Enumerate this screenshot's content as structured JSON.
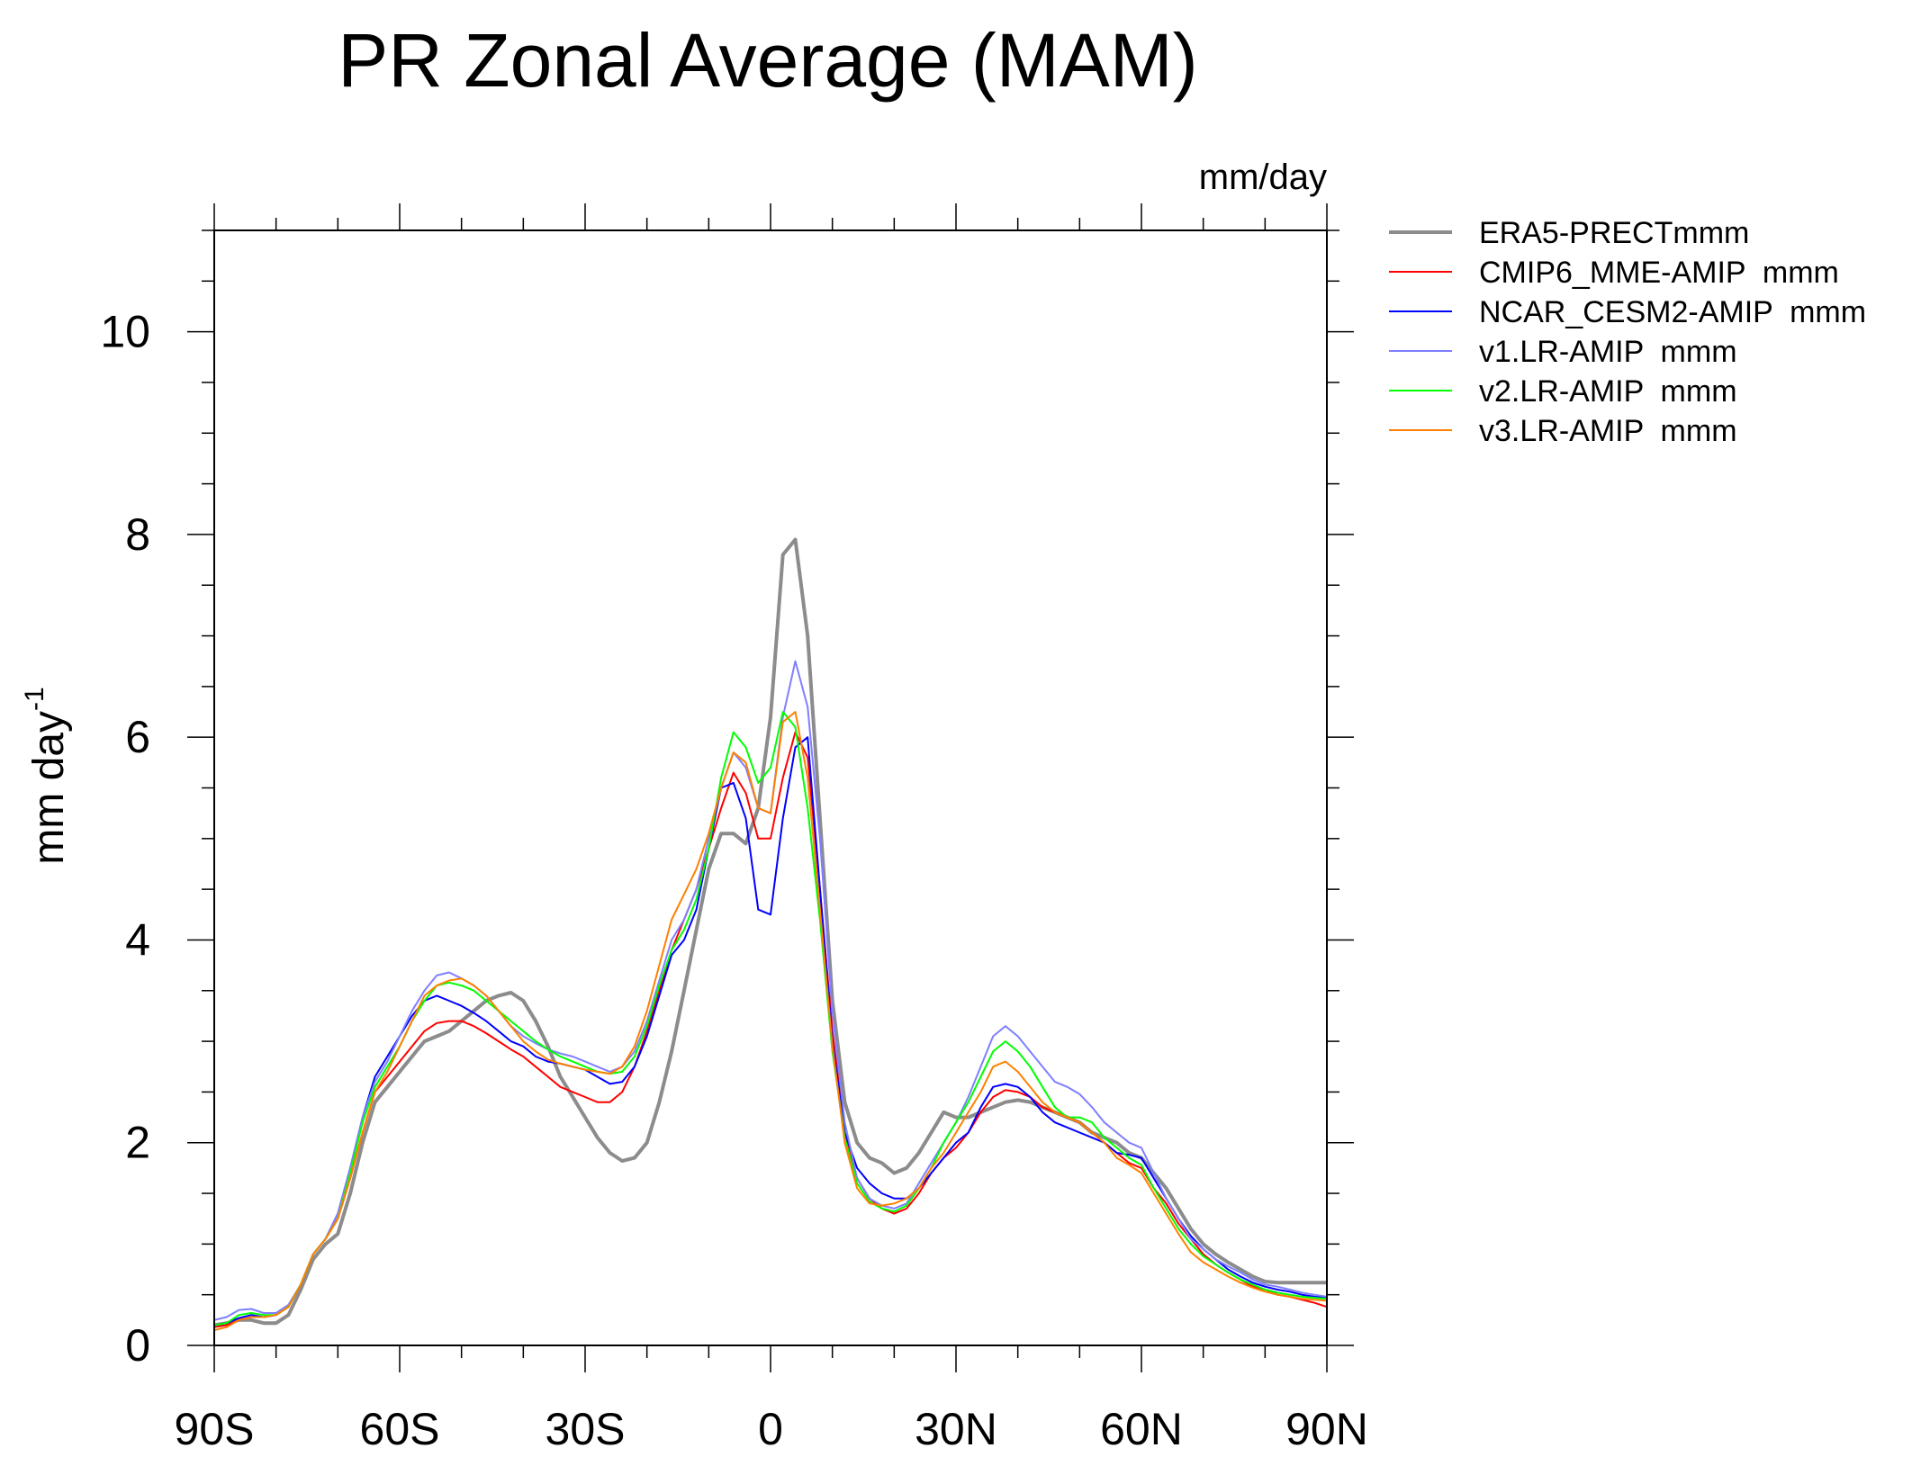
{
  "chart_data": {
    "type": "line",
    "title": "PR Zonal Average (MAM)",
    "units_label": "mm/day",
    "ylabel": "mm day",
    "ylabel_superscript": "-1",
    "xlabel": "",
    "xlim": [
      -90,
      90
    ],
    "ylim": [
      0,
      11
    ],
    "xticks": [
      -90,
      -60,
      -30,
      0,
      30,
      60,
      90
    ],
    "xtick_labels": [
      "90S",
      "60S",
      "30S",
      "0",
      "30N",
      "60N",
      "90N"
    ],
    "yticks": [
      0,
      2,
      4,
      6,
      8,
      10
    ],
    "ytick_labels": [
      "0",
      "2",
      "4",
      "6",
      "8",
      "10"
    ],
    "grid": false,
    "legend_position": "right",
    "x": [
      -90,
      -88,
      -86,
      -84,
      -82,
      -80,
      -78,
      -76,
      -74,
      -72,
      -70,
      -68,
      -66,
      -64,
      -62,
      -60,
      -58,
      -56,
      -54,
      -52,
      -50,
      -48,
      -46,
      -44,
      -42,
      -40,
      -38,
      -36,
      -34,
      -32,
      -30,
      -28,
      -26,
      -24,
      -22,
      -20,
      -18,
      -16,
      -14,
      -12,
      -10,
      -8,
      -6,
      -4,
      -2,
      0,
      2,
      4,
      6,
      8,
      10,
      12,
      14,
      16,
      18,
      20,
      22,
      24,
      26,
      28,
      30,
      32,
      34,
      36,
      38,
      40,
      42,
      44,
      46,
      48,
      50,
      52,
      54,
      56,
      58,
      60,
      62,
      64,
      66,
      68,
      70,
      72,
      74,
      76,
      78,
      80,
      82,
      84,
      86,
      88,
      90
    ],
    "series": [
      {
        "name": "ERA5-PRECTmmm",
        "color": "#8c8c8c",
        "values": [
          0.2,
          0.22,
          0.25,
          0.25,
          0.22,
          0.22,
          0.3,
          0.55,
          0.85,
          1.0,
          1.1,
          1.5,
          2.0,
          2.4,
          2.55,
          2.7,
          2.85,
          3.0,
          3.05,
          3.1,
          3.2,
          3.3,
          3.4,
          3.45,
          3.48,
          3.4,
          3.2,
          2.95,
          2.65,
          2.45,
          2.25,
          2.05,
          1.9,
          1.82,
          1.85,
          2.0,
          2.4,
          2.9,
          3.5,
          4.1,
          4.7,
          5.05,
          5.05,
          4.95,
          5.3,
          6.2,
          7.8,
          7.95,
          7.0,
          5.2,
          3.4,
          2.4,
          2.0,
          1.85,
          1.8,
          1.7,
          1.75,
          1.9,
          2.1,
          2.3,
          2.25,
          2.25,
          2.3,
          2.35,
          2.4,
          2.42,
          2.4,
          2.35,
          2.3,
          2.25,
          2.2,
          2.1,
          2.05,
          2.0,
          1.9,
          1.85,
          1.7,
          1.55,
          1.35,
          1.15,
          1.0,
          0.9,
          0.82,
          0.75,
          0.68,
          0.63,
          0.62,
          0.62,
          0.62,
          0.62,
          0.62
        ]
      },
      {
        "name": "CMIP6_MME-AMIP  mmm",
        "color": "#ff0000",
        "values": [
          0.18,
          0.2,
          0.25,
          0.28,
          0.28,
          0.3,
          0.38,
          0.6,
          0.9,
          1.05,
          1.25,
          1.65,
          2.1,
          2.5,
          2.65,
          2.8,
          2.95,
          3.1,
          3.18,
          3.2,
          3.2,
          3.15,
          3.08,
          3.0,
          2.92,
          2.85,
          2.75,
          2.65,
          2.55,
          2.5,
          2.45,
          2.4,
          2.4,
          2.5,
          2.75,
          3.1,
          3.5,
          3.9,
          4.2,
          4.5,
          4.9,
          5.3,
          5.65,
          5.45,
          5.0,
          5.0,
          5.6,
          6.05,
          5.8,
          4.5,
          3.1,
          2.1,
          1.65,
          1.45,
          1.35,
          1.3,
          1.35,
          1.5,
          1.7,
          1.85,
          1.95,
          2.1,
          2.3,
          2.45,
          2.52,
          2.5,
          2.45,
          2.35,
          2.3,
          2.25,
          2.2,
          2.1,
          2.0,
          1.9,
          1.8,
          1.75,
          1.55,
          1.4,
          1.2,
          1.05,
          0.9,
          0.8,
          0.72,
          0.65,
          0.58,
          0.55,
          0.5,
          0.48,
          0.45,
          0.42,
          0.38
        ]
      },
      {
        "name": "NCAR_CESM2-AMIP  mmm",
        "color": "#0000ff",
        "values": [
          0.2,
          0.22,
          0.27,
          0.3,
          0.28,
          0.3,
          0.38,
          0.6,
          0.9,
          1.05,
          1.3,
          1.75,
          2.25,
          2.65,
          2.85,
          3.05,
          3.25,
          3.4,
          3.45,
          3.4,
          3.35,
          3.28,
          3.2,
          3.1,
          3.0,
          2.95,
          2.85,
          2.8,
          2.78,
          2.75,
          2.72,
          2.65,
          2.58,
          2.6,
          2.75,
          3.05,
          3.45,
          3.85,
          4.0,
          4.3,
          4.9,
          5.5,
          5.55,
          5.2,
          4.3,
          4.25,
          5.2,
          5.9,
          6.0,
          4.5,
          3.0,
          2.1,
          1.75,
          1.6,
          1.5,
          1.45,
          1.45,
          1.55,
          1.7,
          1.85,
          2.0,
          2.1,
          2.35,
          2.55,
          2.58,
          2.55,
          2.45,
          2.3,
          2.2,
          2.15,
          2.1,
          2.05,
          2.0,
          1.9,
          1.88,
          1.85,
          1.65,
          1.45,
          1.25,
          1.08,
          0.95,
          0.85,
          0.75,
          0.68,
          0.62,
          0.58,
          0.55,
          0.53,
          0.5,
          0.48,
          0.47
        ]
      },
      {
        "name": "v1.LR-AMIP  mmm",
        "color": "#7f7fff",
        "values": [
          0.25,
          0.28,
          0.35,
          0.36,
          0.32,
          0.32,
          0.4,
          0.6,
          0.9,
          1.05,
          1.3,
          1.75,
          2.25,
          2.6,
          2.8,
          3.05,
          3.3,
          3.5,
          3.65,
          3.68,
          3.62,
          3.55,
          3.45,
          3.3,
          3.15,
          3.05,
          2.98,
          2.92,
          2.88,
          2.85,
          2.8,
          2.75,
          2.7,
          2.75,
          2.9,
          3.2,
          3.6,
          4.0,
          4.2,
          4.5,
          5.0,
          5.5,
          5.85,
          5.7,
          5.3,
          5.25,
          6.2,
          6.75,
          6.3,
          5.0,
          3.3,
          2.2,
          1.65,
          1.45,
          1.38,
          1.35,
          1.4,
          1.6,
          1.8,
          2.0,
          2.2,
          2.45,
          2.75,
          3.05,
          3.15,
          3.05,
          2.9,
          2.75,
          2.6,
          2.55,
          2.48,
          2.35,
          2.2,
          2.1,
          2.0,
          1.95,
          1.7,
          1.45,
          1.25,
          1.05,
          0.95,
          0.85,
          0.78,
          0.72,
          0.65,
          0.6,
          0.58,
          0.55,
          0.52,
          0.5,
          0.48
        ]
      },
      {
        "name": "v2.LR-AMIP  mmm",
        "color": "#00ff00",
        "values": [
          0.2,
          0.22,
          0.3,
          0.32,
          0.3,
          0.3,
          0.38,
          0.6,
          0.9,
          1.05,
          1.25,
          1.7,
          2.2,
          2.55,
          2.75,
          2.95,
          3.2,
          3.4,
          3.55,
          3.58,
          3.55,
          3.5,
          3.4,
          3.3,
          3.2,
          3.1,
          3.0,
          2.92,
          2.85,
          2.8,
          2.75,
          2.7,
          2.68,
          2.7,
          2.85,
          3.15,
          3.55,
          3.9,
          4.1,
          4.4,
          4.9,
          5.6,
          6.05,
          5.9,
          5.55,
          5.7,
          6.25,
          6.1,
          5.3,
          4.2,
          2.9,
          2.05,
          1.6,
          1.42,
          1.35,
          1.32,
          1.38,
          1.55,
          1.75,
          2.0,
          2.2,
          2.4,
          2.65,
          2.9,
          3.0,
          2.9,
          2.75,
          2.55,
          2.35,
          2.25,
          2.25,
          2.2,
          2.05,
          1.95,
          1.85,
          1.78,
          1.55,
          1.35,
          1.15,
          1.0,
          0.88,
          0.8,
          0.72,
          0.65,
          0.6,
          0.55,
          0.52,
          0.5,
          0.48,
          0.47,
          0.46
        ]
      },
      {
        "name": "v3.LR-AMIP  mmm",
        "color": "#ff8000",
        "values": [
          0.15,
          0.18,
          0.25,
          0.28,
          0.28,
          0.3,
          0.38,
          0.6,
          0.9,
          1.05,
          1.25,
          1.65,
          2.1,
          2.5,
          2.7,
          2.95,
          3.2,
          3.45,
          3.55,
          3.6,
          3.62,
          3.55,
          3.45,
          3.3,
          3.15,
          3.0,
          2.9,
          2.82,
          2.78,
          2.75,
          2.72,
          2.7,
          2.68,
          2.75,
          2.95,
          3.3,
          3.75,
          4.2,
          4.45,
          4.7,
          5.05,
          5.5,
          5.85,
          5.75,
          5.3,
          5.25,
          6.15,
          6.25,
          5.6,
          4.3,
          2.95,
          2.0,
          1.55,
          1.4,
          1.38,
          1.4,
          1.45,
          1.55,
          1.75,
          1.9,
          2.1,
          2.3,
          2.5,
          2.75,
          2.8,
          2.7,
          2.55,
          2.4,
          2.3,
          2.25,
          2.2,
          2.1,
          2.0,
          1.85,
          1.78,
          1.7,
          1.5,
          1.3,
          1.1,
          0.92,
          0.82,
          0.75,
          0.68,
          0.62,
          0.57,
          0.53,
          0.5,
          0.48,
          0.46,
          0.45,
          0.44
        ]
      }
    ]
  }
}
